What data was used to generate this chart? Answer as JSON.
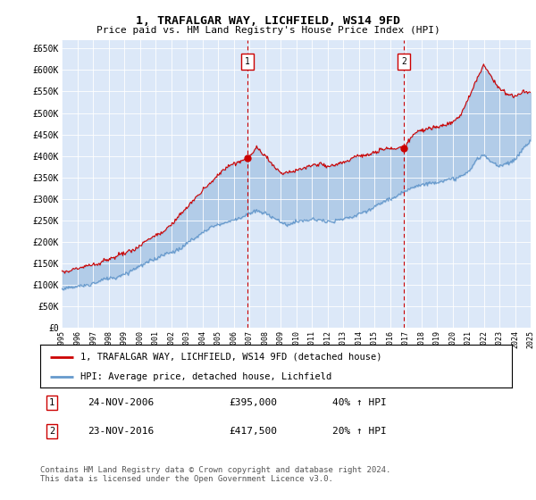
{
  "title": "1, TRAFALGAR WAY, LICHFIELD, WS14 9FD",
  "subtitle": "Price paid vs. HM Land Registry's House Price Index (HPI)",
  "ylim": [
    0,
    670000
  ],
  "yticks": [
    0,
    50000,
    100000,
    150000,
    200000,
    250000,
    300000,
    350000,
    400000,
    450000,
    500000,
    550000,
    600000,
    650000
  ],
  "ytick_labels": [
    "£0",
    "£50K",
    "£100K",
    "£150K",
    "£200K",
    "£250K",
    "£300K",
    "£350K",
    "£400K",
    "£450K",
    "£500K",
    "£550K",
    "£600K",
    "£650K"
  ],
  "plot_bg_color": "#dce8f8",
  "line1_color": "#cc0000",
  "line2_color": "#6699cc",
  "fill_color": "#c5d8f0",
  "vline_color": "#cc0000",
  "transaction1_x": 2006.9,
  "transaction1_y": 395000,
  "transaction1_label": "1",
  "transaction1_date": "24-NOV-2006",
  "transaction1_price": "£395,000",
  "transaction1_hpi": "40% ↑ HPI",
  "transaction2_x": 2016.9,
  "transaction2_y": 417500,
  "transaction2_label": "2",
  "transaction2_date": "23-NOV-2016",
  "transaction2_price": "£417,500",
  "transaction2_hpi": "20% ↑ HPI",
  "legend_line1": "1, TRAFALGAR WAY, LICHFIELD, WS14 9FD (detached house)",
  "legend_line2": "HPI: Average price, detached house, Lichfield",
  "footer": "Contains HM Land Registry data © Crown copyright and database right 2024.\nThis data is licensed under the Open Government Licence v3.0.",
  "xmin": 1995,
  "xmax": 2025,
  "hpi_x": [
    1995.0,
    1995.5,
    1996.0,
    1996.5,
    1997.0,
    1997.5,
    1998.0,
    1998.5,
    1999.0,
    1999.5,
    2000.0,
    2000.5,
    2001.0,
    2001.5,
    2002.0,
    2002.5,
    2003.0,
    2003.5,
    2004.0,
    2004.5,
    2005.0,
    2005.5,
    2006.0,
    2006.5,
    2007.0,
    2007.5,
    2008.0,
    2008.5,
    2009.0,
    2009.5,
    2010.0,
    2010.5,
    2011.0,
    2011.5,
    2012.0,
    2012.5,
    2013.0,
    2013.5,
    2014.0,
    2014.5,
    2015.0,
    2015.5,
    2016.0,
    2016.5,
    2017.0,
    2017.5,
    2018.0,
    2018.5,
    2019.0,
    2019.5,
    2020.0,
    2020.5,
    2021.0,
    2021.5,
    2022.0,
    2022.5,
    2023.0,
    2023.5,
    2024.0,
    2024.5,
    2025.0
  ],
  "hpi_y": [
    90000,
    92000,
    96000,
    100000,
    106000,
    112000,
    118000,
    122000,
    128000,
    135000,
    143000,
    150000,
    158000,
    166000,
    176000,
    188000,
    200000,
    212000,
    225000,
    238000,
    245000,
    252000,
    258000,
    264000,
    270000,
    278000,
    272000,
    262000,
    250000,
    248000,
    252000,
    255000,
    258000,
    258000,
    256000,
    258000,
    263000,
    270000,
    278000,
    288000,
    298000,
    308000,
    318000,
    330000,
    342000,
    350000,
    358000,
    362000,
    365000,
    368000,
    372000,
    378000,
    395000,
    420000,
    435000,
    420000,
    415000,
    418000,
    422000,
    445000,
    460000
  ],
  "red_x": [
    1995.0,
    1995.5,
    1996.0,
    1996.5,
    1997.0,
    1997.5,
    1998.0,
    1998.5,
    1999.0,
    1999.5,
    2000.0,
    2000.5,
    2001.0,
    2001.5,
    2002.0,
    2002.5,
    2003.0,
    2003.5,
    2004.0,
    2004.5,
    2005.0,
    2005.5,
    2006.0,
    2006.5,
    2006.9,
    2007.5,
    2008.0,
    2008.5,
    2009.0,
    2009.5,
    2010.0,
    2010.5,
    2011.0,
    2011.5,
    2012.0,
    2012.5,
    2013.0,
    2013.5,
    2014.0,
    2014.5,
    2015.0,
    2015.5,
    2016.0,
    2016.5,
    2016.9,
    2017.5,
    2018.0,
    2018.5,
    2019.0,
    2019.5,
    2020.0,
    2020.5,
    2021.0,
    2021.5,
    2022.0,
    2022.5,
    2023.0,
    2023.5,
    2024.0,
    2024.5,
    2025.0
  ],
  "red_y": [
    128000,
    132000,
    138000,
    145000,
    153000,
    161000,
    168000,
    172000,
    178000,
    188000,
    200000,
    212000,
    222000,
    232000,
    248000,
    268000,
    288000,
    308000,
    328000,
    348000,
    368000,
    380000,
    388000,
    393000,
    395000,
    415000,
    395000,
    370000,
    350000,
    348000,
    355000,
    362000,
    370000,
    375000,
    370000,
    375000,
    382000,
    390000,
    398000,
    405000,
    410000,
    415000,
    415000,
    416000,
    417500,
    445000,
    455000,
    460000,
    465000,
    470000,
    475000,
    490000,
    530000,
    575000,
    610000,
    580000,
    560000,
    545000,
    540000,
    550000,
    545000
  ]
}
